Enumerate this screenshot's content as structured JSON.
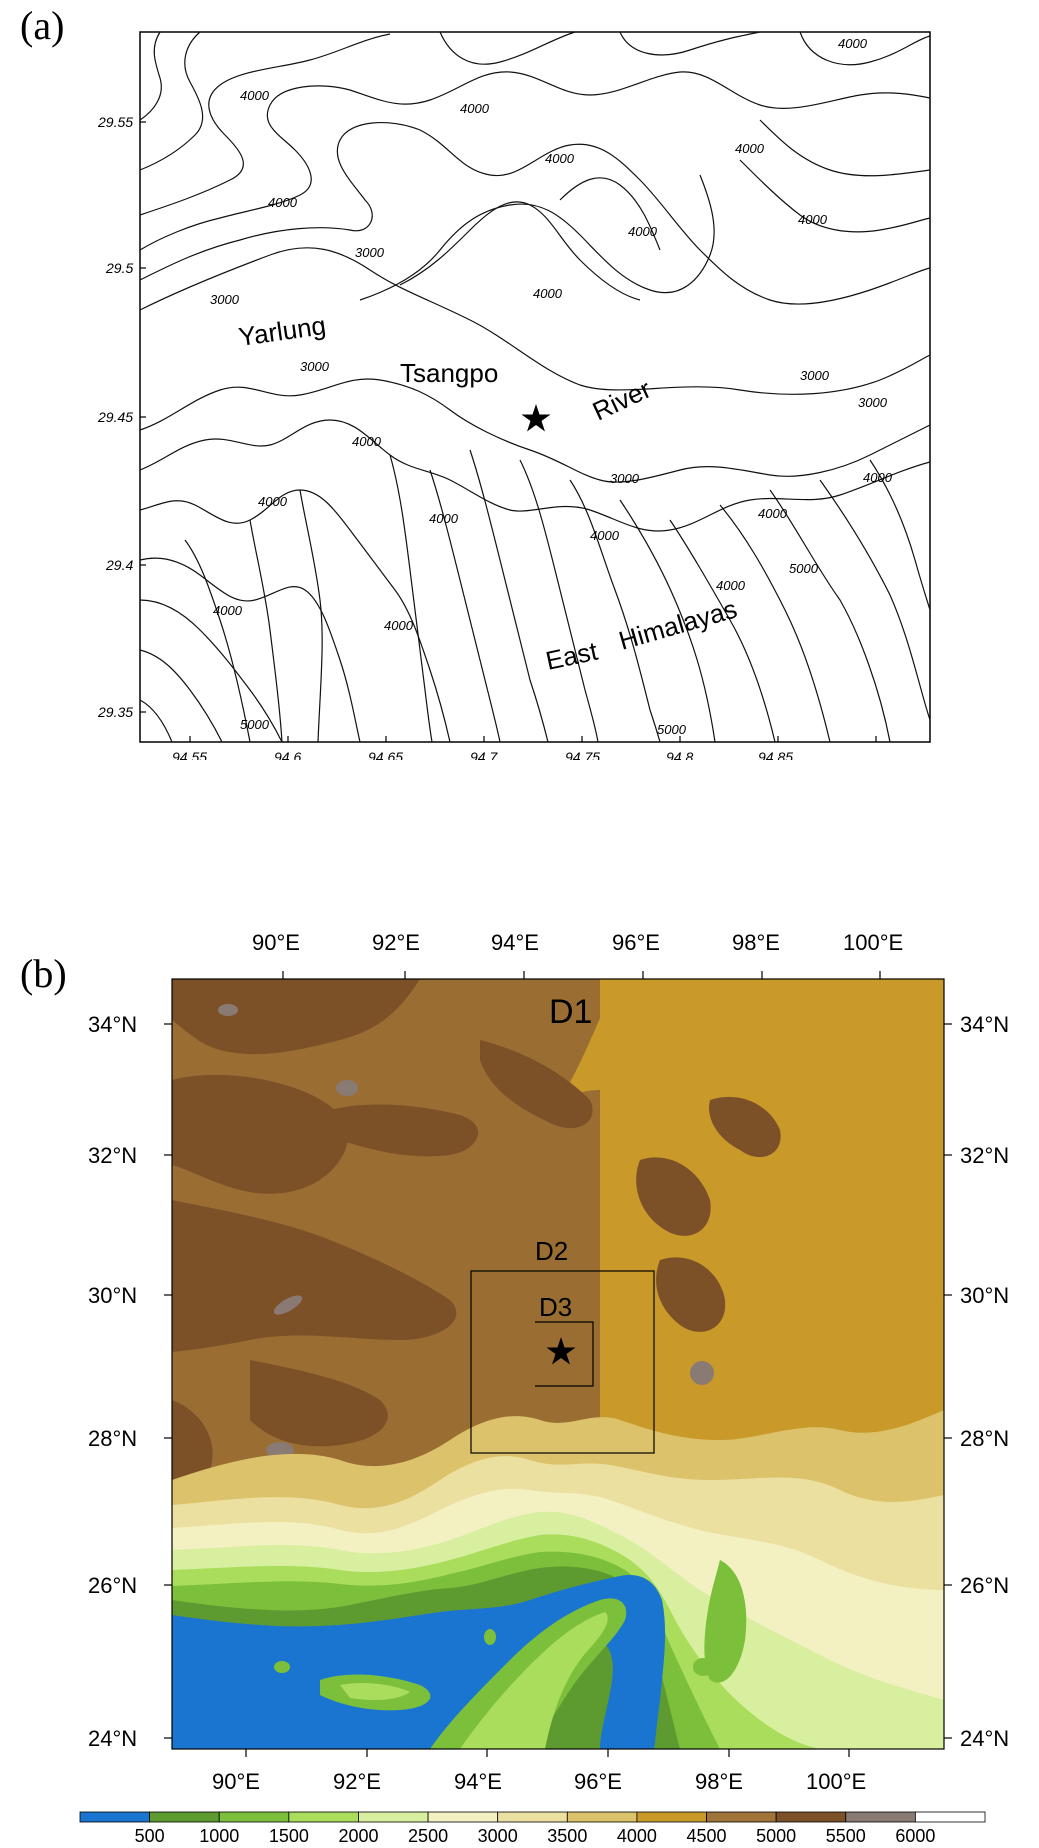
{
  "panel_a": {
    "label": "(a)",
    "x_ticks": [
      "94.55",
      "94.6",
      "94.65",
      "94.7",
      "94.75",
      "94.8",
      "94.85"
    ],
    "y_ticks": [
      "29.55",
      "29.5",
      "29.45",
      "29.4",
      "29.35"
    ],
    "place_names": [
      "Yarlung",
      "Tsangpo",
      "River",
      "East",
      "Himalayas"
    ],
    "contour_labels": [
      "4000",
      "3000",
      "5000"
    ],
    "marker": "star"
  },
  "panel_b": {
    "label": "(b)",
    "lon_ticks": [
      "90°E",
      "92°E",
      "94°E",
      "96°E",
      "98°E",
      "100°E"
    ],
    "lat_ticks": [
      "34°N",
      "32°N",
      "30°N",
      "28°N",
      "26°N",
      "24°N"
    ],
    "domains": [
      "D1",
      "D2",
      "D3"
    ],
    "marker": "star"
  },
  "colorbar": {
    "labels": [
      "500",
      "1000",
      "1500",
      "2000",
      "2500",
      "3000",
      "3500",
      "4000",
      "4500",
      "5000",
      "5500",
      "6000"
    ],
    "colors": [
      "#1a75d1",
      "#5d9a30",
      "#7cbf3a",
      "#a9dd5b",
      "#d7ef9e",
      "#f3f0c2",
      "#ece0a0",
      "#dcc26a",
      "#c99a2a",
      "#a07438",
      "#7d5128",
      "#8a7a74",
      "#ffffff"
    ]
  }
}
